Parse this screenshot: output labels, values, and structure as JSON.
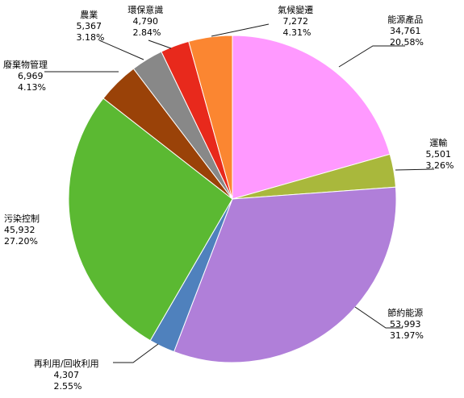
{
  "chart_data": {
    "type": "pie",
    "title": "",
    "start_angle_deg": 0,
    "direction": "clockwise",
    "slices": [
      {
        "name": "能源產品",
        "value": "34,761",
        "percent": "20.58%",
        "color": "#ff99ff"
      },
      {
        "name": "運輸",
        "value": "5,501",
        "percent": "3.26%",
        "color": "#a9b83c"
      },
      {
        "name": "節約能源",
        "value": "53,993",
        "percent": "31.97%",
        "color": "#b07fd9"
      },
      {
        "name": "再利用/回收利用",
        "value": "4,307",
        "percent": "2.55%",
        "color": "#4f81bd"
      },
      {
        "name": "污染控制",
        "value": "45,932",
        "percent": "27.20%",
        "color": "#5bb932"
      },
      {
        "name": "廢棄物管理",
        "value": "6,969",
        "percent": "4.13%",
        "color": "#9a4208"
      },
      {
        "name": "農業",
        "value": "5,367",
        "percent": "3.18%",
        "color": "#888888"
      },
      {
        "name": "環保意識",
        "value": "4,790",
        "percent": "2.84%",
        "color": "#e8291c"
      },
      {
        "name": "氣候變遷",
        "value": "7,272",
        "percent": "4.31%",
        "color": "#fb8631"
      }
    ]
  }
}
